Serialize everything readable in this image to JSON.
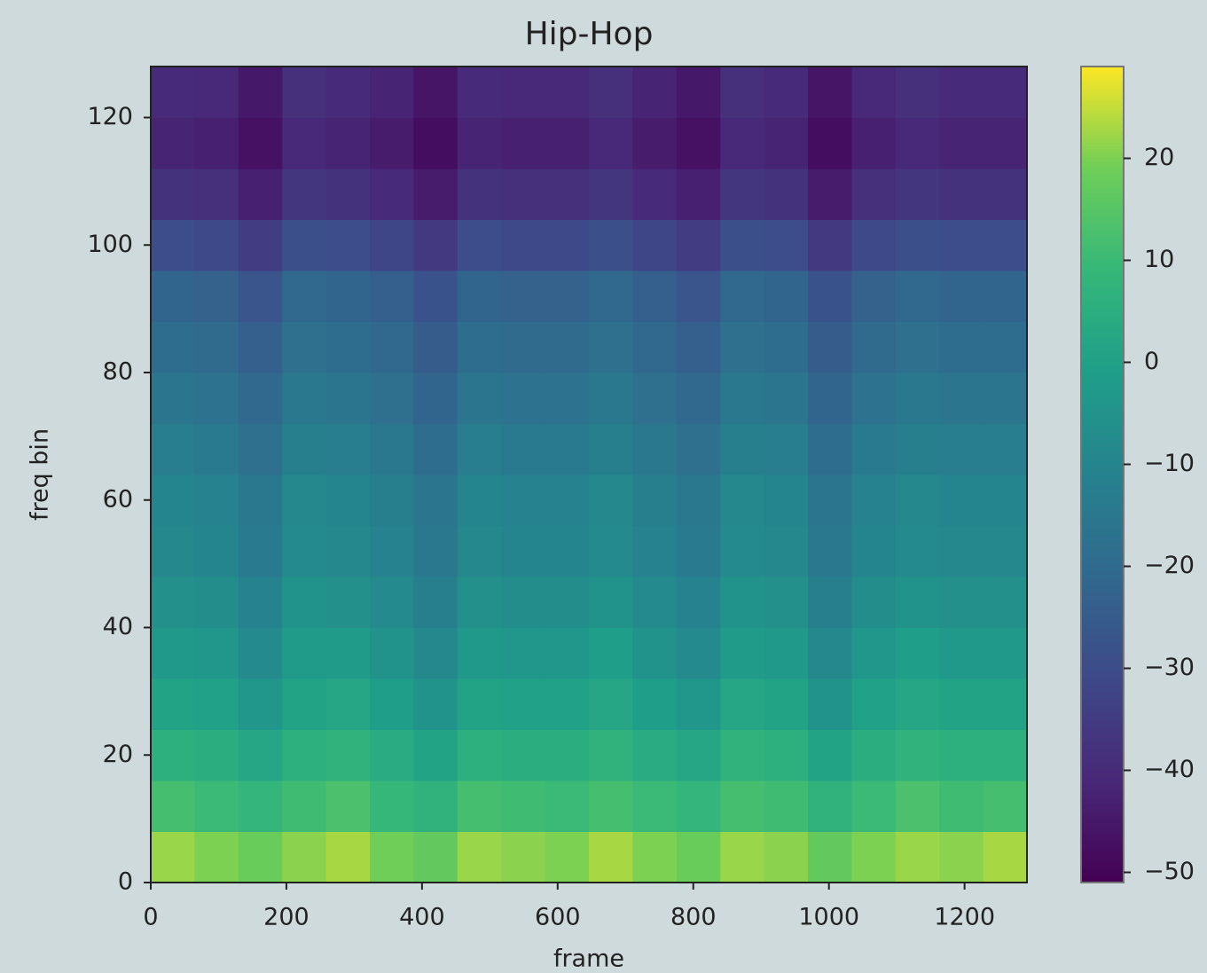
{
  "chart_data": {
    "type": "heatmap",
    "title": "Hip-Hop",
    "xlabel": "frame",
    "ylabel": "freq bin",
    "colormap": "viridis",
    "xlim": [
      0,
      1292
    ],
    "ylim": [
      0,
      128
    ],
    "xticks": [
      0,
      200,
      400,
      600,
      800,
      1000,
      1200
    ],
    "yticks": [
      0,
      20,
      40,
      60,
      80,
      100,
      120
    ],
    "x_edges": [
      0,
      64.6,
      129.2,
      193.8,
      258.4,
      323,
      387.6,
      452.2,
      516.8,
      581.4,
      646,
      710.6,
      775.2,
      839.8,
      904.4,
      969,
      1033.6,
      1098.2,
      1162.8,
      1227.4,
      1292
    ],
    "y_edges": [
      0,
      8,
      16,
      24,
      32,
      40,
      48,
      56,
      64,
      72,
      80,
      88,
      96,
      104,
      112,
      120,
      128
    ],
    "clim": [
      -51,
      29
    ],
    "cticks": [
      {
        "value": -50,
        "label": "−50"
      },
      {
        "value": -40,
        "label": "−40"
      },
      {
        "value": -30,
        "label": "−30"
      },
      {
        "value": -20,
        "label": "−20"
      },
      {
        "value": -10,
        "label": "−10"
      },
      0,
      10,
      20
    ],
    "values": [
      [
        22,
        20,
        18,
        21,
        23,
        19,
        17,
        22,
        21,
        20,
        23,
        20,
        18,
        22,
        21,
        17,
        20,
        22,
        21,
        23
      ],
      [
        12,
        10,
        8,
        11,
        13,
        9,
        7,
        12,
        11,
        10,
        12,
        10,
        8,
        12,
        11,
        7,
        10,
        13,
        11,
        12
      ],
      [
        6,
        5,
        2,
        6,
        7,
        4,
        1,
        6,
        5,
        5,
        7,
        4,
        2,
        7,
        6,
        1,
        5,
        7,
        6,
        6
      ],
      [
        1,
        0,
        -4,
        1,
        2,
        -1,
        -5,
        1,
        0,
        0,
        2,
        -1,
        -4,
        2,
        1,
        -5,
        0,
        2,
        1,
        1
      ],
      [
        -3,
        -4,
        -8,
        -2,
        -2,
        -5,
        -9,
        -3,
        -4,
        -4,
        -1,
        -5,
        -8,
        -2,
        -3,
        -9,
        -4,
        -1,
        -3,
        -3
      ],
      [
        -6,
        -7,
        -11,
        -5,
        -6,
        -8,
        -12,
        -6,
        -7,
        -7,
        -5,
        -8,
        -11,
        -5,
        -6,
        -12,
        -7,
        -5,
        -6,
        -6
      ],
      [
        -9,
        -10,
        -14,
        -8,
        -9,
        -11,
        -15,
        -9,
        -10,
        -10,
        -8,
        -11,
        -14,
        -8,
        -9,
        -15,
        -10,
        -8,
        -9,
        -9
      ],
      [
        -10,
        -11,
        -15,
        -9,
        -10,
        -12,
        -16,
        -10,
        -11,
        -11,
        -9,
        -12,
        -15,
        -9,
        -10,
        -16,
        -11,
        -9,
        -10,
        -10
      ],
      [
        -13,
        -14,
        -18,
        -12,
        -13,
        -15,
        -19,
        -13,
        -14,
        -14,
        -12,
        -15,
        -18,
        -12,
        -13,
        -19,
        -14,
        -12,
        -13,
        -13
      ],
      [
        -16,
        -17,
        -21,
        -15,
        -16,
        -18,
        -22,
        -16,
        -17,
        -17,
        -15,
        -18,
        -21,
        -15,
        -16,
        -22,
        -17,
        -15,
        -16,
        -16
      ],
      [
        -19,
        -20,
        -24,
        -18,
        -19,
        -21,
        -25,
        -19,
        -20,
        -20,
        -18,
        -21,
        -24,
        -18,
        -19,
        -25,
        -20,
        -18,
        -19,
        -19
      ],
      [
        -22,
        -23,
        -27,
        -21,
        -22,
        -24,
        -28,
        -22,
        -23,
        -23,
        -21,
        -24,
        -27,
        -21,
        -22,
        -28,
        -23,
        -21,
        -22,
        -22
      ],
      [
        -30,
        -31,
        -35,
        -29,
        -30,
        -32,
        -36,
        -30,
        -31,
        -31,
        -29,
        -32,
        -35,
        -29,
        -30,
        -36,
        -31,
        -29,
        -30,
        -30
      ],
      [
        -38,
        -39,
        -43,
        -37,
        -38,
        -40,
        -44,
        -38,
        -39,
        -39,
        -37,
        -40,
        -43,
        -37,
        -38,
        -44,
        -39,
        -37,
        -38,
        -38
      ],
      [
        -42,
        -43,
        -47,
        -41,
        -42,
        -44,
        -48,
        -42,
        -43,
        -43,
        -41,
        -44,
        -47,
        -41,
        -42,
        -48,
        -43,
        -41,
        -42,
        -42
      ],
      [
        -40,
        -41,
        -45,
        -39,
        -40,
        -42,
        -46,
        -40,
        -41,
        -41,
        -39,
        -42,
        -45,
        -39,
        -40,
        -46,
        -41,
        -39,
        -40,
        -40
      ]
    ]
  }
}
